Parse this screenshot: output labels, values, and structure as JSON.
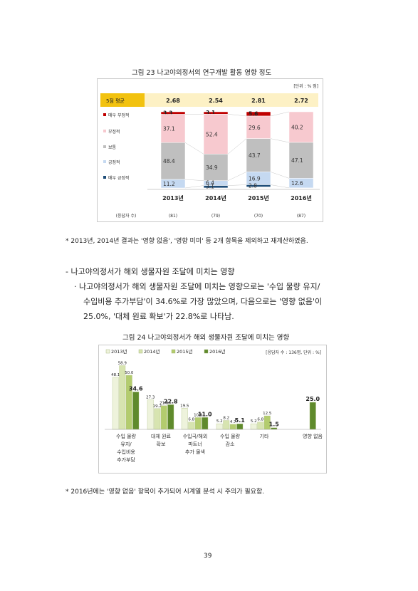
{
  "figure23": {
    "title": "그림 23 나고야의정서의 연구개발 활동 영향 정도",
    "unit": "[단위 : % 점]",
    "avg_label": "5점 평균",
    "averages": [
      "2.68",
      "2.54",
      "2.81",
      "2.72"
    ],
    "respondent_label": "(응답자 수)",
    "respondents": [
      "(81)",
      "(79)",
      "(70)",
      "(87)"
    ],
    "categories": [
      "매우 부정적",
      "부정적",
      "보통",
      "긍정적",
      "매우 긍정적"
    ],
    "colors": [
      "#c00000",
      "#f7c9cf",
      "#bfbfbf",
      "#c5d9f1",
      "#1f4e79"
    ],
    "chart_data": {
      "type": "bar",
      "categories": [
        "2013년",
        "2014년",
        "2015년",
        "2016년"
      ],
      "series": [
        {
          "name": "매우 부정적",
          "values": [
            3.3,
            3.1,
            5.6,
            0
          ]
        },
        {
          "name": "부정적",
          "values": [
            37.1,
            52.4,
            29.6,
            40.2
          ]
        },
        {
          "name": "보통",
          "values": [
            48.4,
            34.9,
            43.7,
            47.1
          ]
        },
        {
          "name": "긍정적",
          "values": [
            11.2,
            6.4,
            16.9,
            12.6
          ]
        },
        {
          "name": "매우 긍정적",
          "values": [
            0,
            3.1,
            2.8,
            0
          ]
        }
      ]
    }
  },
  "note1": "* 2013년, 2014년 결과는 '영향 없음', '영향 미미' 등 2개 항목을 제외하고 재계산하였음.",
  "section": {
    "heading": "- 나고야의정서가 해외 생물자원 조달에 미치는 영향",
    "line1": "· 나고야의정서가 해외 생물자원 조달에 미치는 영향으로는 '수입 물량 유지/",
    "line2": "수입비용 추가부담'이 34.6%로 가장 많았으며, 다음으로는 '영향 없음'이",
    "line3": "25.0%, '대체 원료 확보'가 22.8%로 나타남."
  },
  "figure24": {
    "title": "그림 24 나고야의정서가 해외 생물자원 조달에 미치는 영향",
    "unit": "[응답자 수 : 136명, 단위 : %]",
    "colors": [
      "#eef3dc",
      "#d7e4b0",
      "#b3cc6e",
      "#5f8a2c"
    ],
    "chart_data": {
      "type": "bar",
      "categories": [
        "수입 물량|유지/|수입비용|추가부담",
        "대체 원료|확보",
        "수입국/해외|파트너|추가 물색",
        "수입 물량|감소",
        "기타",
        "영향 없음"
      ],
      "series": [
        {
          "name": "2013년",
          "values": [
            48.1,
            27.3,
            19.5,
            5.2,
            5.2,
            null
          ]
        },
        {
          "name": "2014년",
          "values": [
            58.9,
            19.2,
            6.8,
            8.2,
            6.8,
            null
          ]
        },
        {
          "name": "2015년",
          "values": [
            50.0,
            21.9,
            10.9,
            4.7,
            12.5,
            null
          ]
        },
        {
          "name": "2016년",
          "values": [
            34.6,
            22.8,
            11.0,
            5.1,
            1.5,
            25.0
          ]
        }
      ]
    }
  },
  "note2": "* 2016년에는 '영향 없음' 항목이 추가되어 시계열 분석 시 주의가 필요함.",
  "page_number": "39"
}
